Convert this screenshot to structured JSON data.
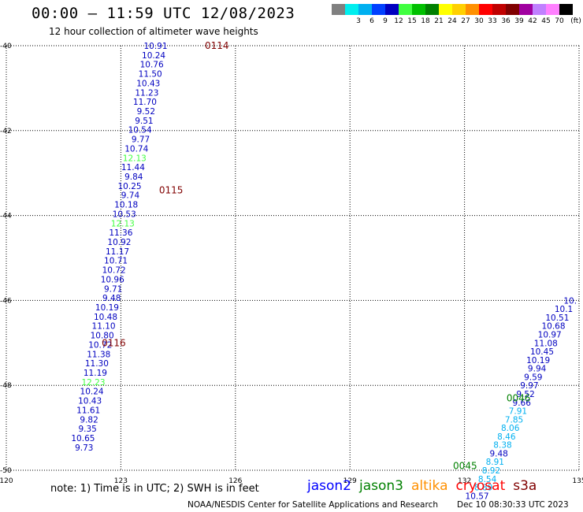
{
  "header": {
    "title": "00:00 — 11:59 UTC 12/08/2023",
    "subtitle": "12 hour collection of altimeter wave heights"
  },
  "legend": {
    "unit": "(ft)",
    "bins": [
      {
        "label": "",
        "color": "#808080"
      },
      {
        "label": "3",
        "color": "#00eeee"
      },
      {
        "label": "6",
        "color": "#00b0f0"
      },
      {
        "label": "9",
        "color": "#0040ff"
      },
      {
        "label": "12",
        "color": "#0000c0"
      },
      {
        "label": "15",
        "color": "#40ff40"
      },
      {
        "label": "18",
        "color": "#00c000"
      },
      {
        "label": "21",
        "color": "#008000"
      },
      {
        "label": "24",
        "color": "#ffff00"
      },
      {
        "label": "27",
        "color": "#ffd000"
      },
      {
        "label": "30",
        "color": "#ff9000"
      },
      {
        "label": "33",
        "color": "#ff0000"
      },
      {
        "label": "36",
        "color": "#c00000"
      },
      {
        "label": "39",
        "color": "#800000"
      },
      {
        "label": "42",
        "color": "#a000a0"
      },
      {
        "label": "45",
        "color": "#c080ff"
      },
      {
        "label": "70",
        "color": "#ff80ff"
      },
      {
        "label": "",
        "color": "#000000"
      }
    ]
  },
  "chart_data": {
    "type": "scatter",
    "xlim": [
      120,
      135
    ],
    "ylim": [
      -50,
      -40
    ],
    "x_ticks": [
      120,
      123,
      126,
      129,
      132,
      135
    ],
    "y_ticks": [
      -40,
      -42,
      -44,
      -46,
      -48,
      -50
    ],
    "x_tick_labels": [
      "120",
      "123",
      "126",
      "129",
      "132",
      "135"
    ],
    "y_tick_labels": [
      "-40",
      "-42",
      "-44",
      "-46",
      "-48",
      "-50"
    ],
    "grid": true,
    "tracks": [
      {
        "color": "#0000c0",
        "labels": [
          {
            "text": "0114",
            "x": 125.2,
            "y": -40.0,
            "color": "#800000"
          },
          {
            "text": "0115",
            "x": 124.0,
            "y": -43.4,
            "color": "#800000"
          },
          {
            "text": "0116",
            "x": 122.5,
            "y": -47.0,
            "color": "#800000"
          }
        ],
        "points": [
          {
            "x": 124.22,
            "y": -40.0,
            "v": "10.91"
          },
          {
            "x": 124.17,
            "y": -40.22,
            "v": "10.24"
          },
          {
            "x": 124.12,
            "y": -40.44,
            "v": "10.76"
          },
          {
            "x": 124.08,
            "y": -40.66,
            "v": "11.50"
          },
          {
            "x": 124.03,
            "y": -40.88,
            "v": "10.43"
          },
          {
            "x": 123.99,
            "y": -41.1,
            "v": "11.23"
          },
          {
            "x": 123.94,
            "y": -41.32,
            "v": "11.70"
          },
          {
            "x": 123.9,
            "y": -41.54,
            "v": "9.52"
          },
          {
            "x": 123.85,
            "y": -41.76,
            "v": "9.51"
          },
          {
            "x": 123.81,
            "y": -41.98,
            "v": "10.54"
          },
          {
            "x": 123.76,
            "y": -42.2,
            "v": "9.77"
          },
          {
            "x": 123.72,
            "y": -42.42,
            "v": "10.74"
          },
          {
            "x": 123.67,
            "y": -42.64,
            "v": "12.13",
            "color": "#40ff40"
          },
          {
            "x": 123.63,
            "y": -42.86,
            "v": "11.44"
          },
          {
            "x": 123.58,
            "y": -43.08,
            "v": "9.84"
          },
          {
            "x": 123.54,
            "y": -43.3,
            "v": "10.25"
          },
          {
            "x": 123.49,
            "y": -43.52,
            "v": "9.74"
          },
          {
            "x": 123.45,
            "y": -43.74,
            "v": "10.18"
          },
          {
            "x": 123.4,
            "y": -43.96,
            "v": "10.53"
          },
          {
            "x": 123.36,
            "y": -44.18,
            "v": "12.13",
            "color": "#40ff40"
          },
          {
            "x": 123.31,
            "y": -44.4,
            "v": "11.36"
          },
          {
            "x": 123.27,
            "y": -44.62,
            "v": "10.92"
          },
          {
            "x": 123.22,
            "y": -44.84,
            "v": "11.17"
          },
          {
            "x": 123.18,
            "y": -45.06,
            "v": "10.71"
          },
          {
            "x": 123.13,
            "y": -45.28,
            "v": "10.72"
          },
          {
            "x": 123.09,
            "y": -45.5,
            "v": "10.96"
          },
          {
            "x": 123.04,
            "y": -45.72,
            "v": "9.71"
          },
          {
            "x": 123.0,
            "y": -45.94,
            "v": "9.48"
          },
          {
            "x": 122.95,
            "y": -46.16,
            "v": "10.19"
          },
          {
            "x": 122.91,
            "y": -46.38,
            "v": "10.48"
          },
          {
            "x": 122.86,
            "y": -46.6,
            "v": "11.10"
          },
          {
            "x": 122.82,
            "y": -46.82,
            "v": "10.80"
          },
          {
            "x": 122.77,
            "y": -47.04,
            "v": "10.72"
          },
          {
            "x": 122.73,
            "y": -47.26,
            "v": "11.38"
          },
          {
            "x": 122.68,
            "y": -47.48,
            "v": "11.30"
          },
          {
            "x": 122.64,
            "y": -47.7,
            "v": "11.19"
          },
          {
            "x": 122.59,
            "y": -47.92,
            "v": "12.23",
            "color": "#40ff40"
          },
          {
            "x": 122.55,
            "y": -48.14,
            "v": "10.24"
          },
          {
            "x": 122.5,
            "y": -48.36,
            "v": "10.43"
          },
          {
            "x": 122.46,
            "y": -48.58,
            "v": "11.61"
          },
          {
            "x": 122.41,
            "y": -48.8,
            "v": "9.82"
          },
          {
            "x": 122.37,
            "y": -49.02,
            "v": "9.35"
          },
          {
            "x": 122.32,
            "y": -49.24,
            "v": "10.65"
          },
          {
            "x": 122.28,
            "y": -49.46,
            "v": "9.73"
          }
        ]
      },
      {
        "color": "#0000c0",
        "labels": [
          {
            "text": "0046",
            "x": 133.1,
            "y": -48.3,
            "color": "#008000"
          },
          {
            "text": "0045",
            "x": 131.7,
            "y": -49.9,
            "color": "#008000"
          }
        ],
        "points": [
          {
            "x": 134.94,
            "y": -46.0,
            "v": "10."
          },
          {
            "x": 134.84,
            "y": -46.2,
            "v": "10.1"
          },
          {
            "x": 134.74,
            "y": -46.4,
            "v": "10.51"
          },
          {
            "x": 134.64,
            "y": -46.6,
            "v": "10.68"
          },
          {
            "x": 134.54,
            "y": -46.8,
            "v": "10.97"
          },
          {
            "x": 134.44,
            "y": -47.0,
            "v": "11.08"
          },
          {
            "x": 134.34,
            "y": -47.2,
            "v": "10.45"
          },
          {
            "x": 134.24,
            "y": -47.4,
            "v": "10.19"
          },
          {
            "x": 134.14,
            "y": -47.6,
            "v": "9.94"
          },
          {
            "x": 134.04,
            "y": -47.8,
            "v": "9.59"
          },
          {
            "x": 133.94,
            "y": -48.0,
            "v": "9.97"
          },
          {
            "x": 133.84,
            "y": -48.2,
            "v": "9.52"
          },
          {
            "x": 133.74,
            "y": -48.4,
            "v": "9.66"
          },
          {
            "x": 133.64,
            "y": -48.6,
            "v": "7.91",
            "color": "#00b0f0"
          },
          {
            "x": 133.54,
            "y": -48.8,
            "v": "7.85",
            "color": "#00b0f0"
          },
          {
            "x": 133.44,
            "y": -49.0,
            "v": "8.06",
            "color": "#00b0f0"
          },
          {
            "x": 133.34,
            "y": -49.2,
            "v": "8.46",
            "color": "#00b0f0"
          },
          {
            "x": 133.24,
            "y": -49.4,
            "v": "8.38",
            "color": "#00b0f0"
          },
          {
            "x": 133.14,
            "y": -49.6,
            "v": "9.48"
          },
          {
            "x": 133.04,
            "y": -49.8,
            "v": "8.91",
            "color": "#00b0f0"
          },
          {
            "x": 132.94,
            "y": -50.0,
            "v": "8.92",
            "color": "#00b0f0"
          },
          {
            "x": 132.84,
            "y": -50.2,
            "v": "8.54",
            "color": "#00b0f0"
          },
          {
            "x": 132.74,
            "y": -50.4,
            "v": "8.89",
            "color": "#00b0f0"
          },
          {
            "x": 132.64,
            "y": -50.6,
            "v": "10.57"
          }
        ]
      }
    ]
  },
  "footer": {
    "note": "note: 1) Time is in UTC; 2) SWH is in feet",
    "satellites": [
      {
        "name": "jason2",
        "color": "#0000ff"
      },
      {
        "name": "jason3",
        "color": "#008000"
      },
      {
        "name": "altika",
        "color": "#ff9000"
      },
      {
        "name": "cryosat",
        "color": "#ff0000"
      },
      {
        "name": "s3a",
        "color": "#800000"
      }
    ],
    "credit": "NOAA/NESDIS Center for Satellite Applications and Research",
    "stamp": "Dec 10 08:30:33 UTC 2023"
  }
}
